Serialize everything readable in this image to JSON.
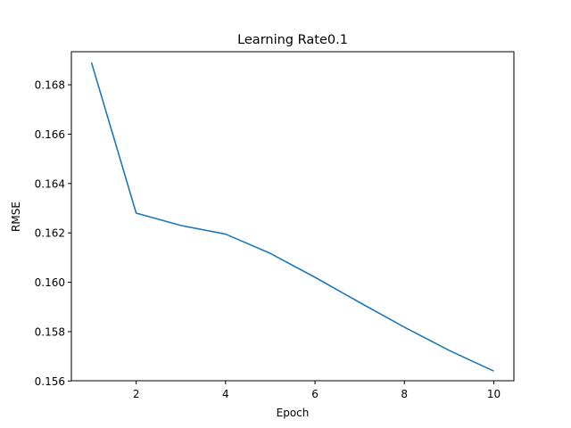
{
  "chart_data": {
    "type": "line",
    "title": "Learning Rate0.1",
    "xlabel": "Epoch",
    "ylabel": "RMSE",
    "xlim": [
      0.55,
      10.45
    ],
    "ylim": [
      0.15601,
      0.16934
    ],
    "xticks": [
      2,
      4,
      6,
      8,
      10
    ],
    "yticks": [
      0.156,
      0.158,
      0.16,
      0.162,
      0.164,
      0.166,
      0.168
    ],
    "ytick_labels": [
      "0.156",
      "0.158",
      "0.160",
      "0.162",
      "0.164",
      "0.166",
      "0.168"
    ],
    "grid": false,
    "series": [
      {
        "color": "#1f77b4",
        "x": [
          1,
          2,
          3,
          4,
          5,
          6,
          7,
          8,
          9,
          10
        ],
        "values": [
          0.1689,
          0.1628,
          0.1623,
          0.16195,
          0.16117,
          0.1602,
          0.15918,
          0.15818,
          0.15724,
          0.1564
        ]
      }
    ]
  }
}
